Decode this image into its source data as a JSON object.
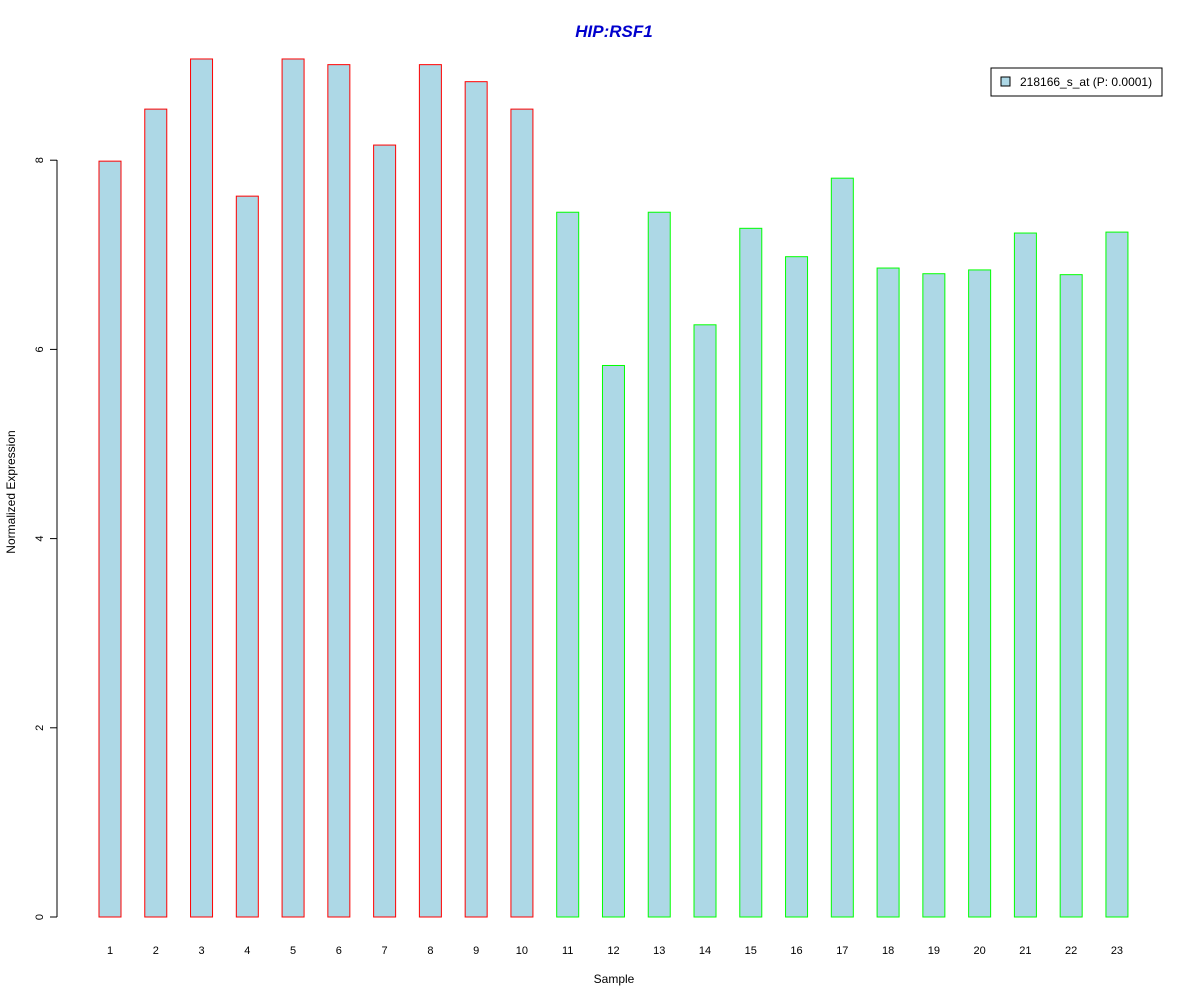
{
  "chart_data": {
    "type": "bar",
    "title": "HIP:RSF1",
    "xlabel": "Sample",
    "ylabel": "Normalized Expression",
    "ylim": [
      0,
      9.1
    ],
    "yticks": [
      0,
      2,
      4,
      6,
      8
    ],
    "categories": [
      "1",
      "2",
      "3",
      "4",
      "5",
      "6",
      "7",
      "8",
      "9",
      "10",
      "11",
      "12",
      "13",
      "14",
      "15",
      "16",
      "17",
      "18",
      "19",
      "20",
      "21",
      "22",
      "23"
    ],
    "series": [
      {
        "name": "218166_s_at (P: 0.0001)",
        "values": [
          7.99,
          8.54,
          9.07,
          7.62,
          9.07,
          9.01,
          8.16,
          9.01,
          8.83,
          8.54,
          7.45,
          5.83,
          7.45,
          6.26,
          7.28,
          6.98,
          7.81,
          6.86,
          6.8,
          6.84,
          7.23,
          6.79,
          7.24
        ]
      }
    ],
    "bar_fill": "#add8e6",
    "group_border_colors": [
      "#ff0000",
      "#ff0000",
      "#ff0000",
      "#ff0000",
      "#ff0000",
      "#ff0000",
      "#ff0000",
      "#ff0000",
      "#ff0000",
      "#ff0000",
      "#00ff00",
      "#00ff00",
      "#00ff00",
      "#00ff00",
      "#00ff00",
      "#00ff00",
      "#00ff00",
      "#00ff00",
      "#00ff00",
      "#00ff00",
      "#00ff00",
      "#00ff00",
      "#00ff00"
    ],
    "title_color": "#0000cd",
    "legend_position": "top-right",
    "grid": false
  }
}
